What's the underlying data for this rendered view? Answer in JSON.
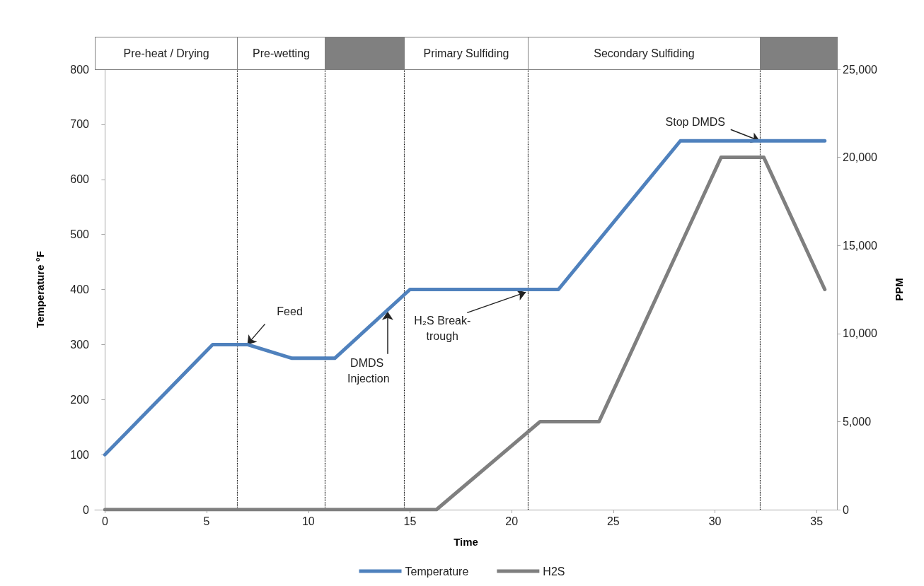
{
  "chart_data": {
    "type": "line",
    "xlabel": "Time",
    "ylabel": "Temperature °F",
    "y2label": "PPM",
    "x": [
      0,
      5.3,
      7,
      9.2,
      11.3,
      15,
      22.3,
      28.3,
      35.4
    ],
    "series": [
      {
        "name": "Temperature",
        "color": "#4f81bd",
        "values": [
          100,
          300,
          300,
          275,
          275,
          400,
          400,
          670,
          670
        ]
      },
      {
        "name": "H2S",
        "color": "#7f7f7f",
        "axis": "y2",
        "x": [
          0,
          16.3,
          21.4,
          24.3,
          30.3,
          32.4,
          35.4
        ],
        "values": [
          0,
          0,
          5000,
          5000,
          20000,
          20000,
          12500
        ]
      }
    ],
    "xlim": [
      -0.5,
      36
    ],
    "xticks": [
      0,
      5,
      10,
      15,
      20,
      25,
      30,
      35
    ],
    "ylim": [
      0,
      800
    ],
    "yticks": [
      0,
      100,
      200,
      300,
      400,
      500,
      600,
      700,
      800
    ],
    "y2lim": [
      0,
      25000
    ],
    "y2ticks": [
      {
        "value": 0,
        "label": "0"
      },
      {
        "value": 5000,
        "label": "5,000"
      },
      {
        "value": 10000,
        "label": "10,000"
      },
      {
        "value": 15000,
        "label": "15,000"
      },
      {
        "value": 20000,
        "label": "20,000"
      },
      {
        "value": 25000,
        "label": "25,000"
      }
    ],
    "ref_lines": [
      {
        "axis": "x",
        "value": 6.5,
        "line_style": "dotted",
        "color": "#000000"
      },
      {
        "axis": "x",
        "value": 10.8,
        "line_style": "dotted",
        "color": "#000000"
      },
      {
        "axis": "x",
        "value": 14.7,
        "line_style": "dotted",
        "color": "#000000"
      },
      {
        "axis": "x",
        "value": 20.8,
        "line_style": "dotted",
        "color": "#000000"
      },
      {
        "axis": "x",
        "value": 32.2,
        "line_style": "dotted",
        "color": "#000000"
      }
    ],
    "annotations": [
      "Pre-heat / Drying",
      "Pre-wetting",
      "Primary Sulfiding",
      "Secondary Sulfiding",
      {
        "text": "Feed",
        "x": 7,
        "y": 300
      },
      {
        "text": "DMDS Injection",
        "x": 13.9,
        "y": 360
      },
      {
        "text": "H₂S Break-\ntrough",
        "x": 20.7,
        "y": 395
      },
      {
        "text": "Stop DMDS",
        "x": 32.2,
        "y": 670
      }
    ],
    "legend": "bottom",
    "grid": false,
    "marker": "none",
    "line_style": "solid"
  }
}
